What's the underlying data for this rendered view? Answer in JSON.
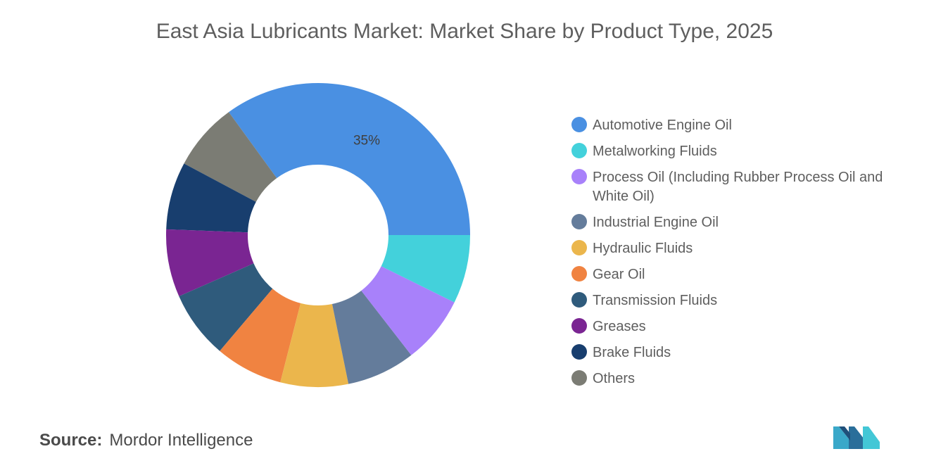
{
  "title": "East Asia Lubricants Market: Market Share by Product Type, 2025",
  "source": {
    "prefix": "Source:",
    "name": "Mordor Intelligence"
  },
  "logo": {
    "icon": "mordor-intelligence-logo"
  },
  "chart_data": {
    "type": "pie",
    "variant": "donut",
    "title": "East Asia Lubricants Market: Market Share by Product Type, 2025",
    "legend_position": "right",
    "categories": [
      "Automotive Engine Oil",
      "Others",
      "Brake Fluids",
      "Greases",
      "Transmission Fluids",
      "Gear Oil",
      "Hydraulic Fluids",
      "Industrial Engine Oil",
      "Process Oil (Including Rubber Process Oil and White Oil)",
      "Metalworking Fluids"
    ],
    "values": [
      35,
      7.2,
      7.2,
      7.2,
      7.2,
      7.2,
      7.2,
      7.3,
      7.2,
      7.3
    ],
    "colors": [
      "#4a90e2",
      "#7b7c74",
      "#183e6e",
      "#7a2592",
      "#2f5b7c",
      "#f08341",
      "#ebb64c",
      "#647c9b",
      "#a881fa",
      "#43d1db"
    ],
    "data_labels": [
      "35%",
      "",
      "",
      "",
      "",
      "",
      "",
      "",
      "",
      ""
    ]
  },
  "legend": [
    {
      "label": "Automotive Engine Oil",
      "color": "#4a90e2"
    },
    {
      "label": "Metalworking Fluids",
      "color": "#43d1db"
    },
    {
      "label": "Process Oil (Including Rubber Process Oil and White Oil)",
      "color": "#a881fa"
    },
    {
      "label": "Industrial Engine Oil",
      "color": "#647c9b"
    },
    {
      "label": "Hydraulic Fluids",
      "color": "#ebb64c"
    },
    {
      "label": "Gear Oil",
      "color": "#f08341"
    },
    {
      "label": "Transmission Fluids",
      "color": "#2f5b7c"
    },
    {
      "label": "Greases",
      "color": "#7a2592"
    },
    {
      "label": "Brake Fluids",
      "color": "#183e6e"
    },
    {
      "label": "Others",
      "color": "#7b7c74"
    }
  ]
}
